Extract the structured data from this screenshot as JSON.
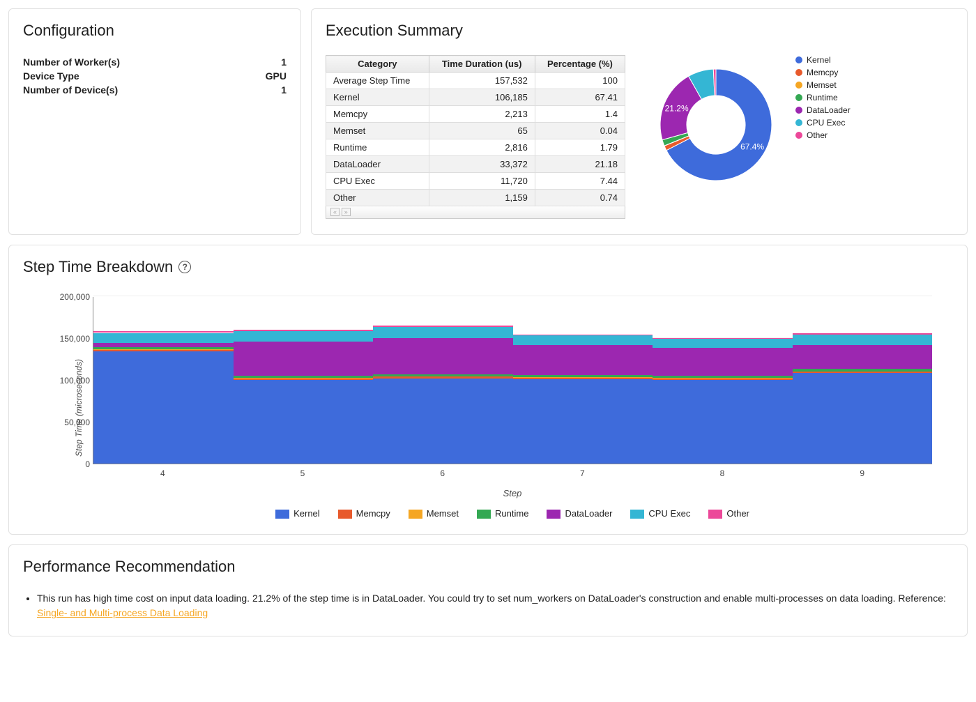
{
  "colors": {
    "Kernel": "#3e6bdb",
    "Memcpy": "#e85a2c",
    "Memset": "#f5a623",
    "Runtime": "#34a853",
    "DataLoader": "#9c27b0",
    "CPU Exec": "#34b6d4",
    "Other": "#ec4899"
  },
  "configuration": {
    "title": "Configuration",
    "rows": [
      {
        "label": "Number of Worker(s)",
        "value": "1"
      },
      {
        "label": "Device Type",
        "value": "GPU"
      },
      {
        "label": "Number of Device(s)",
        "value": "1"
      }
    ]
  },
  "execution_summary": {
    "title": "Execution Summary",
    "table": {
      "columns": [
        "Category",
        "Time Duration (us)",
        "Percentage (%)"
      ],
      "rows": [
        [
          "Average Step Time",
          "157,532",
          "100"
        ],
        [
          "Kernel",
          "106,185",
          "67.41"
        ],
        [
          "Memcpy",
          "2,213",
          "1.4"
        ],
        [
          "Memset",
          "65",
          "0.04"
        ],
        [
          "Runtime",
          "2,816",
          "1.79"
        ],
        [
          "DataLoader",
          "33,372",
          "21.18"
        ],
        [
          "CPU Exec",
          "11,720",
          "7.44"
        ],
        [
          "Other",
          "1,159",
          "0.74"
        ]
      ]
    },
    "donut": {
      "slices": [
        {
          "label": "Kernel",
          "pct": 67.41
        },
        {
          "label": "Memcpy",
          "pct": 1.4
        },
        {
          "label": "Memset",
          "pct": 0.04
        },
        {
          "label": "Runtime",
          "pct": 1.79
        },
        {
          "label": "DataLoader",
          "pct": 21.18
        },
        {
          "label": "CPU Exec",
          "pct": 7.44
        },
        {
          "label": "Other",
          "pct": 0.74
        }
      ],
      "labels_shown": [
        {
          "text": "67.4%",
          "key": "Kernel"
        },
        {
          "text": "21.2%",
          "key": "DataLoader"
        }
      ],
      "legend": [
        "Kernel",
        "Memcpy",
        "Memset",
        "Runtime",
        "DataLoader",
        "CPU Exec",
        "Other"
      ]
    }
  },
  "step_breakdown": {
    "title": "Step Time Breakdown",
    "y_label": "Step Time (microseconds)",
    "x_label": "Step",
    "y_ticks": [
      0,
      50000,
      100000,
      150000,
      200000
    ],
    "y_max": 200000,
    "x_ticks": [
      4,
      5,
      6,
      7,
      8,
      9
    ],
    "series_order": [
      "Kernel",
      "Memcpy",
      "Memset",
      "Runtime",
      "DataLoader",
      "CPU Exec",
      "Other"
    ],
    "bars": [
      {
        "step": 4,
        "Kernel": 134000,
        "Memcpy": 2200,
        "Memset": 65,
        "Runtime": 2800,
        "DataLoader": 5500,
        "CPU Exec": 11700,
        "Other": 1900
      },
      {
        "step": 5,
        "Kernel": 100000,
        "Memcpy": 2200,
        "Memset": 65,
        "Runtime": 2800,
        "DataLoader": 41000,
        "CPU Exec": 12000,
        "Other": 1600
      },
      {
        "step": 6,
        "Kernel": 102000,
        "Memcpy": 2200,
        "Memset": 65,
        "Runtime": 2800,
        "DataLoader": 43000,
        "CPU Exec": 13500,
        "Other": 1600
      },
      {
        "step": 7,
        "Kernel": 101000,
        "Memcpy": 2200,
        "Memset": 65,
        "Runtime": 2800,
        "DataLoader": 36000,
        "CPU Exec": 11000,
        "Other": 800
      },
      {
        "step": 8,
        "Kernel": 100000,
        "Memcpy": 2200,
        "Memset": 65,
        "Runtime": 2800,
        "DataLoader": 33000,
        "CPU Exec": 11000,
        "Other": 800
      },
      {
        "step": 9,
        "Kernel": 108000,
        "Memcpy": 2200,
        "Memset": 65,
        "Runtime": 2800,
        "DataLoader": 29000,
        "CPU Exec": 12500,
        "Other": 1300
      }
    ]
  },
  "performance": {
    "title": "Performance Recommendation",
    "items": [
      {
        "text": "This run has high time cost on input data loading. 21.2% of the step time is in DataLoader. You could try to set num_workers on DataLoader's construction and enable multi-processes on data loading. Reference: ",
        "link_text": "Single- and Multi-process Data Loading"
      }
    ]
  }
}
